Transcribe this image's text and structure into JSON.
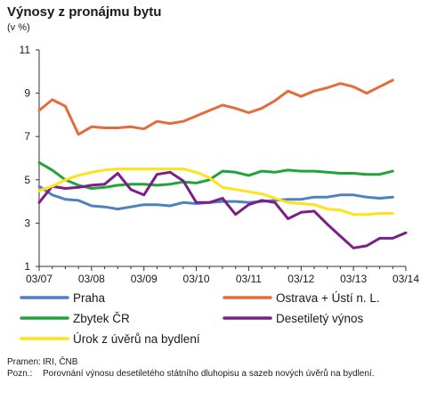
{
  "chart_data": {
    "type": "line",
    "title": "Výnosy z pronájmu bytu",
    "unit": "(v %)",
    "ylim": [
      1,
      11
    ],
    "yticks": [
      1,
      3,
      5,
      7,
      9,
      11
    ],
    "xlim": [
      0,
      28
    ],
    "xtick_labels": [
      "03/07",
      "03/08",
      "03/09",
      "03/10",
      "03/11",
      "03/12",
      "03/13",
      "03/14"
    ],
    "grid": false,
    "legend_position": "bottom",
    "series": [
      {
        "name": "Praha",
        "color": "#4f81bd",
        "values": [
          4.7,
          4.3,
          4.1,
          4.05,
          3.8,
          3.75,
          3.65,
          3.75,
          3.85,
          3.85,
          3.8,
          3.95,
          3.9,
          3.95,
          4.0,
          4.0,
          3.95,
          4.0,
          4.05,
          4.1,
          4.1,
          4.2,
          4.2,
          4.3,
          4.3,
          4.2,
          4.15,
          4.2
        ]
      },
      {
        "name": "Ostrava + Ústí n. L.",
        "color": "#e46c3c",
        "values": [
          8.2,
          8.7,
          8.4,
          7.1,
          7.45,
          7.4,
          7.4,
          7.45,
          7.35,
          7.7,
          7.6,
          7.7,
          7.95,
          8.2,
          8.45,
          8.3,
          8.1,
          8.3,
          8.65,
          9.1,
          8.85,
          9.1,
          9.25,
          9.45,
          9.3,
          9.0,
          9.3,
          9.6
        ]
      },
      {
        "name": "Zbytek ČR",
        "color": "#22a33a",
        "values": [
          5.8,
          5.45,
          5.0,
          4.75,
          4.6,
          4.65,
          4.75,
          4.8,
          4.8,
          4.75,
          4.8,
          4.9,
          4.85,
          5.0,
          5.4,
          5.35,
          5.2,
          5.4,
          5.35,
          5.45,
          5.4,
          5.4,
          5.35,
          5.3,
          5.3,
          5.25,
          5.25,
          5.4
        ]
      },
      {
        "name": "Desetiletý výnos",
        "color": "#7b1f87",
        "values": [
          3.95,
          4.7,
          4.6,
          4.65,
          4.75,
          4.8,
          5.3,
          4.55,
          4.3,
          5.25,
          5.35,
          4.95,
          3.95,
          3.95,
          4.15,
          3.4,
          3.85,
          4.05,
          3.95,
          3.2,
          3.5,
          3.55,
          2.95,
          2.4,
          1.85,
          1.95,
          2.3,
          2.3,
          2.55
        ]
      },
      {
        "name": "Úrok z úvěrů na bydlení",
        "color": "#ffe21a",
        "values": [
          4.5,
          4.7,
          5.0,
          5.2,
          5.35,
          5.45,
          5.5,
          5.5,
          5.5,
          5.5,
          5.5,
          5.5,
          5.35,
          5.1,
          4.65,
          4.55,
          4.45,
          4.35,
          4.15,
          3.95,
          3.9,
          3.85,
          3.65,
          3.6,
          3.4,
          3.4,
          3.45,
          3.45
        ]
      }
    ]
  },
  "notes": {
    "source_label": "Pramen:",
    "source_text": "IRI, ČNB",
    "note_label": "Pozn.:",
    "note_text": "Porovnání výnosu desetiletého státního dluhopisu a sazeb nových úvěrů na bydlení."
  }
}
